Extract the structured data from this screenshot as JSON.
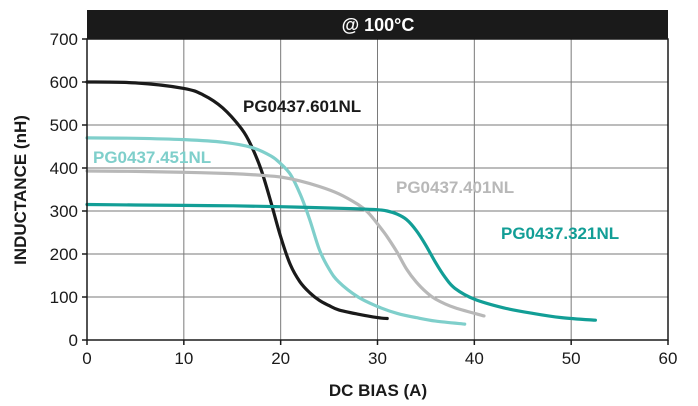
{
  "chart_data": {
    "type": "line",
    "title": "@ 100°C",
    "xlabel": "DC BIAS (A)",
    "ylabel": "INDUCTANCE (nH)",
    "xlim": [
      0,
      60
    ],
    "ylim": [
      0,
      700
    ],
    "xticks": [
      "0",
      "10",
      "20",
      "30",
      "40",
      "50",
      "60"
    ],
    "yticks": [
      "0",
      "100",
      "200",
      "300",
      "400",
      "500",
      "600",
      "700"
    ],
    "grid": true,
    "series": [
      {
        "name": "PG0437.601NL",
        "color": "#1a1a1a",
        "x": [
          0,
          5,
          10,
          12,
          14,
          16,
          17,
          18,
          19,
          20,
          21,
          22,
          23,
          24,
          25,
          26,
          28,
          30,
          31
        ],
        "y": [
          600,
          598,
          585,
          570,
          540,
          490,
          450,
          395,
          320,
          240,
          175,
          135,
          110,
          92,
          80,
          70,
          60,
          52,
          50
        ]
      },
      {
        "name": "PG0437.451NL",
        "color": "#7fcfcb",
        "x": [
          0,
          5,
          10,
          14,
          17,
          19,
          20,
          21,
          22,
          23,
          24,
          25,
          26,
          28,
          30,
          32,
          34,
          36,
          39
        ],
        "y": [
          470,
          469,
          466,
          460,
          448,
          428,
          410,
          385,
          340,
          280,
          210,
          165,
          135,
          100,
          78,
          62,
          52,
          44,
          37
        ]
      },
      {
        "name": "PG0437.401NL",
        "color": "#b8b8b8",
        "x": [
          0,
          5,
          10,
          15,
          18,
          20,
          22,
          24,
          26,
          28,
          29,
          30,
          31,
          32,
          33,
          34,
          35,
          36,
          38,
          41
        ],
        "y": [
          393,
          392,
          390,
          387,
          383,
          379,
          370,
          357,
          340,
          315,
          297,
          270,
          240,
          205,
          165,
          135,
          112,
          95,
          75,
          56
        ]
      },
      {
        "name": "PG0437.321NL",
        "color": "#129e96",
        "x": [
          0,
          5,
          10,
          15,
          20,
          25,
          28,
          30,
          31,
          32,
          33,
          34,
          35,
          36,
          37,
          38,
          40,
          43,
          46,
          49,
          52.5
        ],
        "y": [
          315,
          314,
          313,
          312,
          310,
          307,
          305,
          303,
          300,
          293,
          280,
          255,
          220,
          180,
          145,
          120,
          95,
          75,
          62,
          52,
          46
        ]
      }
    ]
  }
}
